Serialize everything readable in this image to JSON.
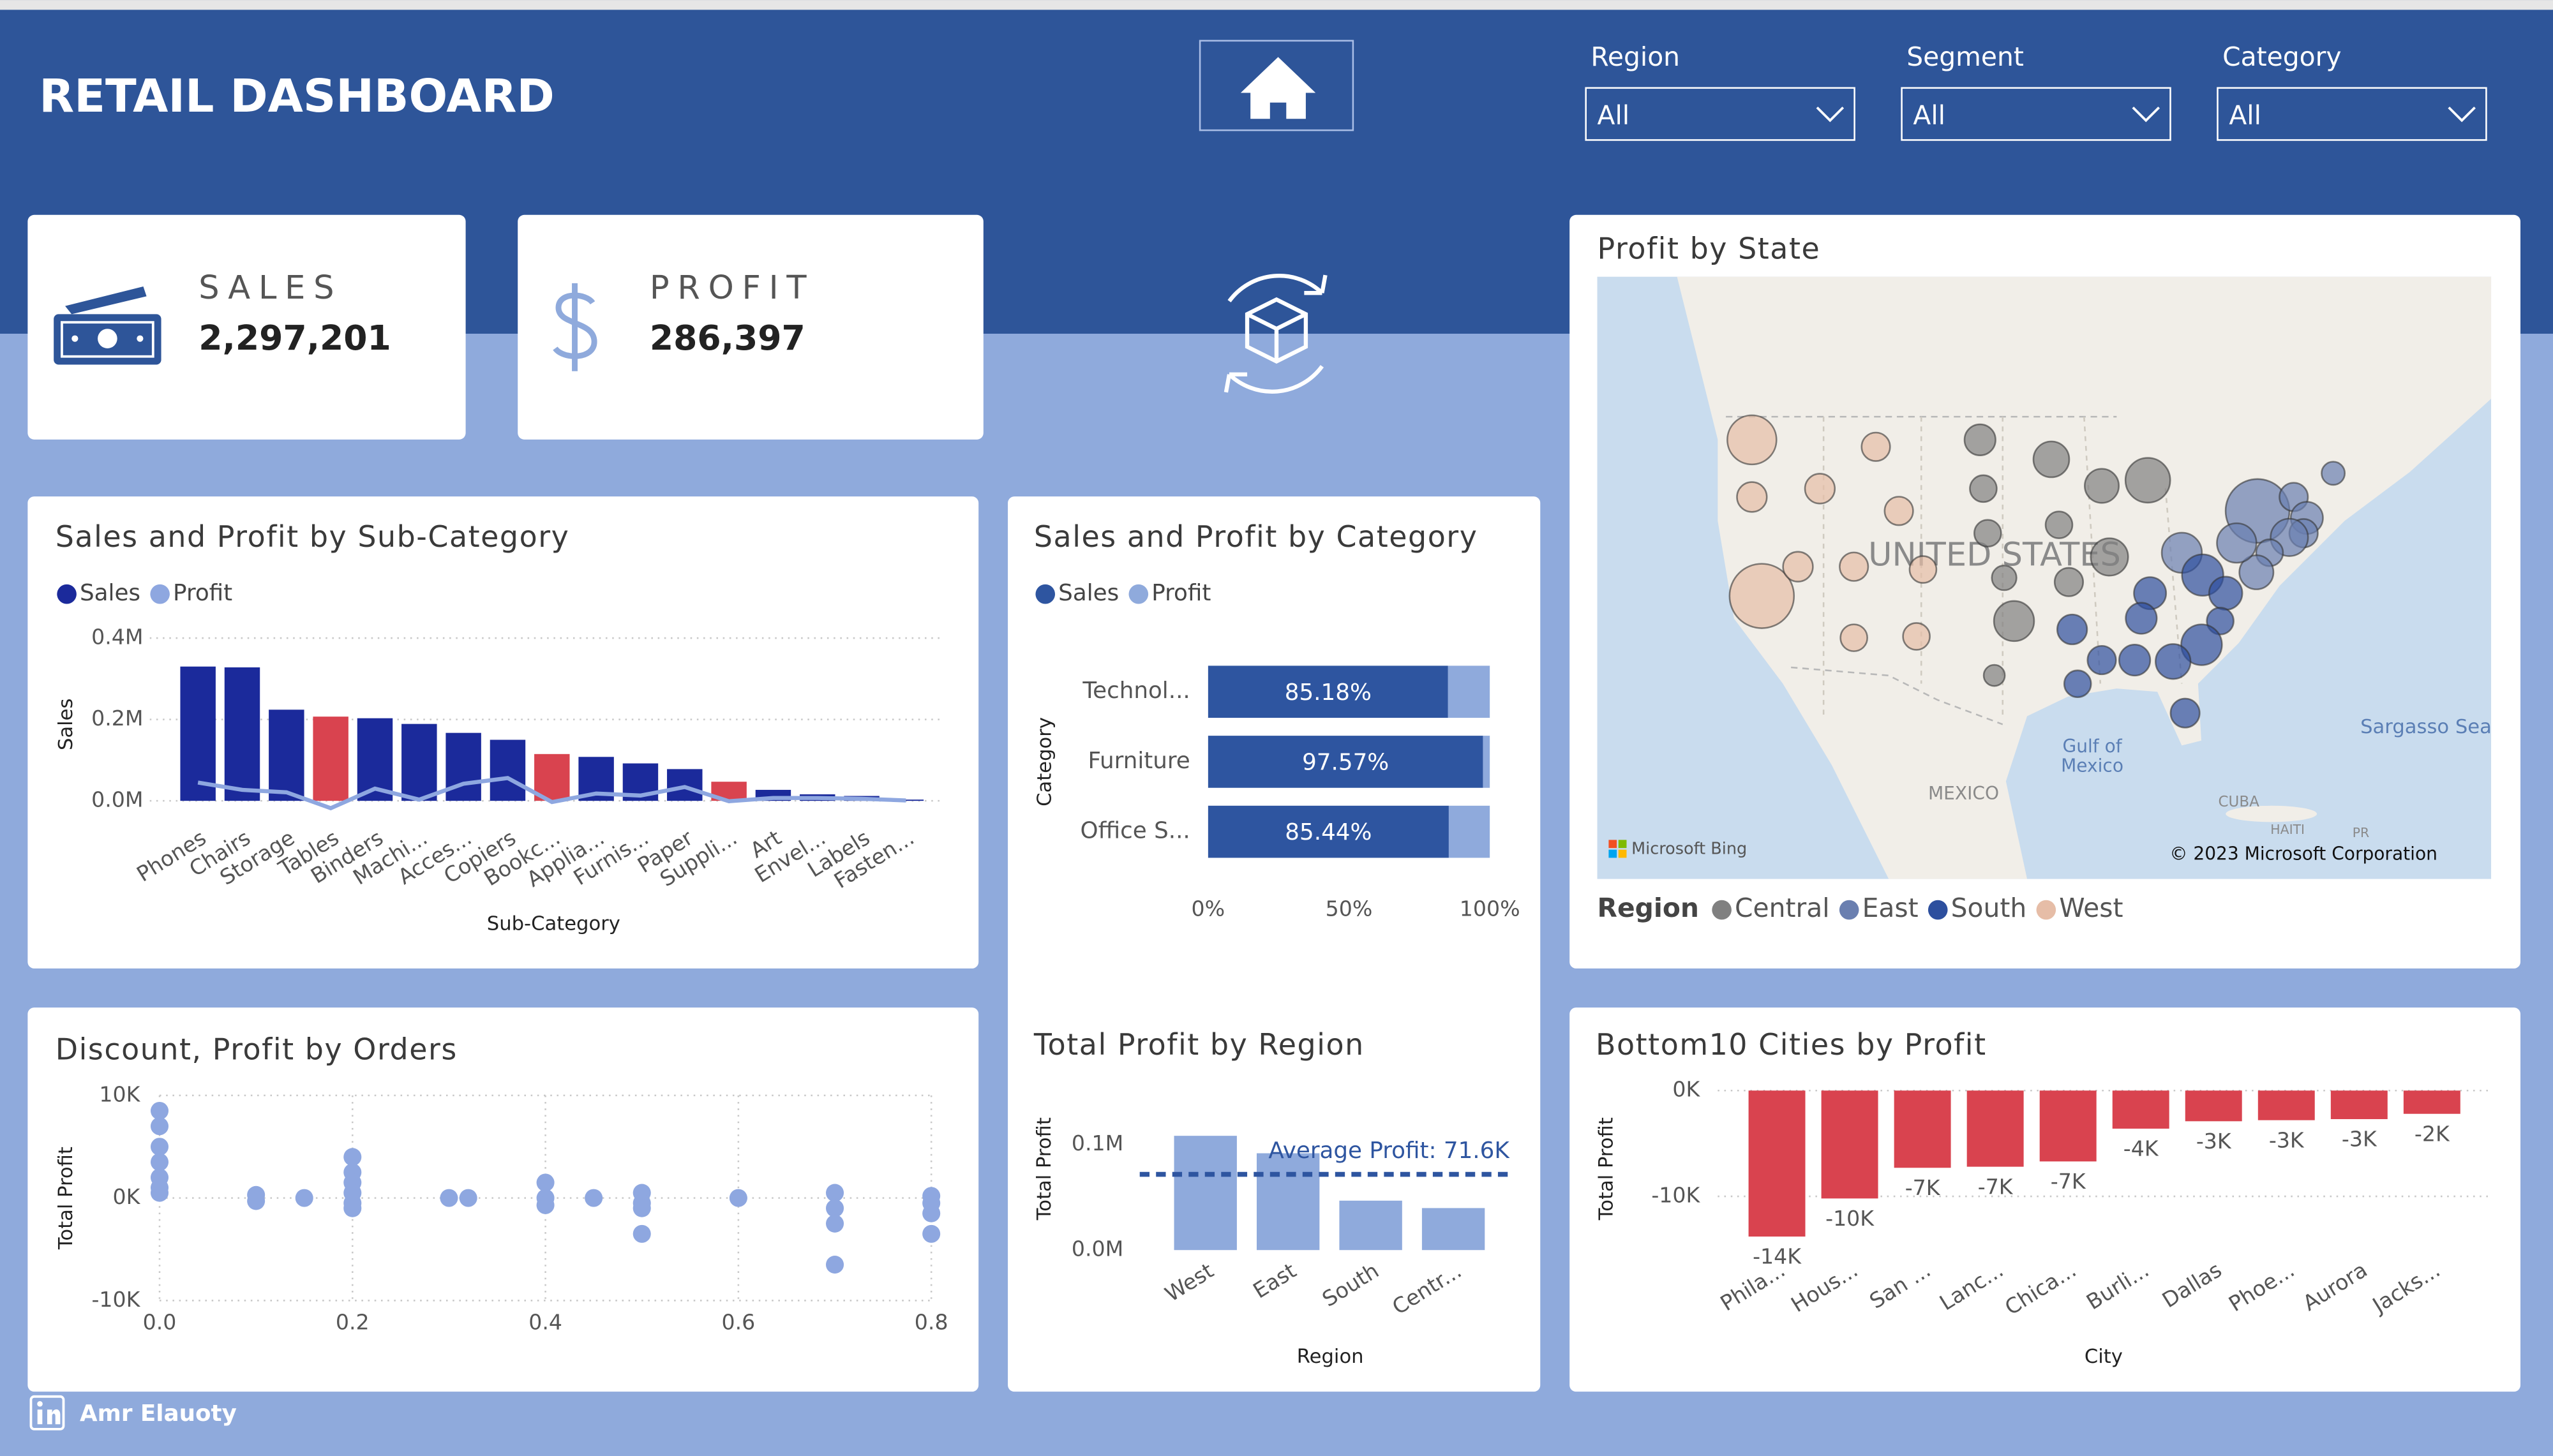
{
  "header": {
    "title": "RETAIL DASHBOARD"
  },
  "filters": [
    {
      "label": "Region",
      "value": "All"
    },
    {
      "label": "Segment",
      "value": "All"
    },
    {
      "label": "Category",
      "value": "All"
    }
  ],
  "kpis": [
    {
      "label": "SALES",
      "value": "2,297,201"
    },
    {
      "label": "PROFIT",
      "value": "286,397"
    }
  ],
  "footer": {
    "author": "Amr Elauoty"
  },
  "chart_data": [
    {
      "type": "bar",
      "title": "Sales and Profit by Sub-Category",
      "x_label": "Sub-Category",
      "y_label": "Sales",
      "categories": [
        "Phones",
        "Chairs",
        "Storage",
        "Tables",
        "Binders",
        "Machi...",
        "Acces...",
        "Copiers",
        "Bookc...",
        "Applia...",
        "Furnis...",
        "Paper",
        "Suppli...",
        "Art",
        "Envel...",
        "Labels",
        "Fasten..."
      ],
      "series": [
        {
          "name": "Sales",
          "color": "#1b2a9b",
          "colors": [
            "#1b2a9b",
            "#1b2a9b",
            "#1b2a9b",
            "#d9434f",
            "#1b2a9b",
            "#1b2a9b",
            "#1b2a9b",
            "#1b2a9b",
            "#d9434f",
            "#1b2a9b",
            "#1b2a9b",
            "#1b2a9b",
            "#d9434f",
            "#1b2a9b",
            "#1b2a9b",
            "#1b2a9b",
            "#1b2a9b"
          ],
          "values": [
            330000,
            328000,
            224000,
            207000,
            203000,
            189000,
            167000,
            150000,
            115000,
            108000,
            92000,
            78000,
            47000,
            27000,
            16000,
            12000,
            3000
          ]
        },
        {
          "name": "Profit",
          "color": "#8ea7e0",
          "type": "line",
          "values": [
            45000,
            27000,
            21000,
            -18000,
            30000,
            3000,
            42000,
            56000,
            -3000,
            18000,
            13000,
            34000,
            -1000,
            7000,
            7000,
            5000,
            1000
          ]
        }
      ],
      "ylim": [
        -40000,
        420000
      ],
      "yticks": [
        {
          "value": 0,
          "label": "0.0M"
        },
        {
          "value": 200000,
          "label": "0.2M"
        },
        {
          "value": 400000,
          "label": "0.4M"
        }
      ],
      "grid": true
    },
    {
      "type": "bar",
      "orientation": "horizontal",
      "stacked": "percent",
      "title": "Sales and Profit by Category",
      "y_label": "Category",
      "categories": [
        "Technol...",
        "Furniture",
        "Office S..."
      ],
      "series": [
        {
          "name": "Sales",
          "color": "#2e55a0",
          "values": [
            85.18,
            97.57,
            85.44
          ],
          "value_labels": [
            "85.18%",
            "97.57%",
            "85.44%"
          ]
        },
        {
          "name": "Profit",
          "color": "#8faadc",
          "values": [
            14.82,
            2.43,
            14.56
          ]
        }
      ],
      "xlim": [
        0,
        100
      ],
      "xticks": [
        {
          "value": 0,
          "label": "0%"
        },
        {
          "value": 50,
          "label": "50%"
        },
        {
          "value": 100,
          "label": "100%"
        }
      ]
    },
    {
      "type": "map",
      "title": "Profit by State",
      "legend_title": "Region",
      "xlim": [
        -136.1,
        -54.6
      ],
      "ylim": [
        16.1,
        59.3
      ],
      "map_labels": [
        "UNITED STATES",
        "Gulf of",
        "Mexico",
        "MEXICO",
        "CUBA",
        "HAITI",
        "PR",
        "Sargasso Sea"
      ],
      "attribution": [
        "Microsoft Bing",
        "© 2023 Microsoft Corporation"
      ],
      "series": [
        {
          "name": "Central",
          "color": "#808080",
          "x": [
            -101.2,
            -94.7,
            -90.1,
            -85.9,
            -100.9,
            -100.5,
            -94.0,
            -99.0,
            -93.1,
            -98.1,
            -99.9,
            -89.4
          ],
          "y": [
            47.6,
            46.2,
            44.3,
            44.7,
            44.1,
            40.9,
            41.5,
            37.7,
            37.4,
            34.6,
            30.7,
            39.2
          ],
          "sizes": [
            5000,
            10000,
            8000,
            24000,
            2000,
            2000,
            2000,
            1000,
            3000,
            16000,
            100,
            12000
          ]
        },
        {
          "name": "East",
          "color": "#6a7fb0",
          "x": [
            -75.9,
            -72.6,
            -71.4,
            -71.7,
            -73.0,
            -74.8,
            -76.0,
            -77.8,
            -82.8,
            -69.0
          ],
          "y": [
            42.5,
            43.5,
            42.0,
            40.9,
            40.6,
            39.5,
            38.1,
            40.2,
            39.5,
            45.2
          ],
          "sizes": [
            74000,
            3000,
            6000,
            3000,
            12000,
            2000,
            8000,
            15000,
            16000,
            500
          ]
        },
        {
          "name": "South",
          "color": "#2d4f9e",
          "x": [
            -85.7,
            -80.9,
            -78.8,
            -79.3,
            -81.0,
            -83.6,
            -87.1,
            -90.1,
            -92.3,
            -92.8,
            -86.5,
            -82.5
          ],
          "y": [
            36.6,
            37.9,
            36.6,
            34.6,
            32.9,
            31.7,
            31.8,
            31.8,
            30.1,
            34.0,
            34.8,
            28.0
          ],
          "sizes": [
            6000,
            18000,
            7000,
            2000,
            17000,
            9000,
            5000,
            3000,
            2000,
            4000,
            5000,
            3400
          ]
        },
        {
          "name": "West",
          "color": "#e6bda7",
          "x": [
            -122.0,
            -122.0,
            -121.1,
            -115.8,
            -110.7,
            -117.8,
            -112.7,
            -108.6,
            -106.4,
            -112.7,
            -107.0
          ],
          "y": [
            47.6,
            43.5,
            36.4,
            44.1,
            47.1,
            38.5,
            38.5,
            42.5,
            38.3,
            33.4,
            33.5
          ],
          "sizes": [
            33000,
            4000,
            76000,
            4000,
            3000,
            4000,
            3000,
            3000,
            2000,
            2000,
            2000
          ]
        }
      ]
    },
    {
      "type": "scatter",
      "title": "Discount, Profit by Orders",
      "y_label": "Total Profit",
      "color": "#8ea7e0",
      "x": [
        0,
        0,
        0,
        0,
        0,
        0,
        0,
        0.1,
        0.1,
        0.15,
        0.2,
        0.2,
        0.2,
        0.2,
        0.2,
        0.2,
        0.3,
        0.32,
        0.4,
        0.4,
        0.4,
        0.45,
        0.5,
        0.5,
        0.5,
        0.5,
        0.6,
        0.7,
        0.7,
        0.7,
        0.7,
        0.8,
        0.8,
        0.8,
        0.8
      ],
      "values": [
        8500,
        7000,
        5000,
        3500,
        2000,
        1000,
        500,
        300,
        -300,
        0,
        4000,
        2500,
        1500,
        500,
        -500,
        -1000,
        0,
        0,
        1500,
        0,
        -700,
        0,
        500,
        -500,
        -1000,
        -3500,
        0,
        500,
        -1000,
        -2500,
        -6500,
        200,
        -500,
        -1500,
        -3500
      ],
      "xlim": [
        0,
        0.8
      ],
      "xticks": [
        {
          "value": 0,
          "label": "0.0"
        },
        0.2,
        0.4,
        0.6,
        0.8
      ],
      "ylim": [
        -10000,
        10000
      ],
      "yticks": [
        {
          "value": -10000,
          "label": "-10K"
        },
        {
          "value": 0,
          "label": "0K"
        },
        {
          "value": 10000,
          "label": "10K"
        }
      ],
      "grid": true
    },
    {
      "type": "bar",
      "title": "Total Profit by Region",
      "x_label": "Region",
      "y_label": "Total Profit",
      "color": "#8faadc",
      "categories": [
        "West",
        "East",
        "South",
        "Centr..."
      ],
      "values": [
        108000,
        91500,
        46700,
        39700
      ],
      "ylim": [
        0,
        120000
      ],
      "yticks": [
        {
          "value": 0,
          "label": "0.0M"
        },
        {
          "value": 100000,
          "label": "0.1M"
        }
      ],
      "reference_line": {
        "label": "Average Profit: 71.6K",
        "value": 71600,
        "color": "#2e55a0"
      }
    },
    {
      "type": "bar",
      "title": "Bottom10 Cities by Profit",
      "x_label": "City",
      "y_label": "Total Profit",
      "color": "#d9434f",
      "categories": [
        "Phila...",
        "Hous...",
        "San ...",
        "Lanc...",
        "Chica...",
        "Burli...",
        "Dallas",
        "Phoe...",
        "Aurora",
        "Jacks..."
      ],
      "values": [
        -13800,
        -10200,
        -7300,
        -7200,
        -6700,
        -3600,
        -2900,
        -2800,
        -2700,
        -2200
      ],
      "value_labels": [
        "-14K",
        "-10K",
        "-7K",
        "-7K",
        "-7K",
        "-4K",
        "-3K",
        "-3K",
        "-3K",
        "-2K"
      ],
      "ylim": [
        -15000,
        1000
      ],
      "yticks": [
        {
          "value": 0,
          "label": "0K"
        },
        {
          "value": -10000,
          "label": "-10K"
        }
      ],
      "grid": true
    }
  ]
}
